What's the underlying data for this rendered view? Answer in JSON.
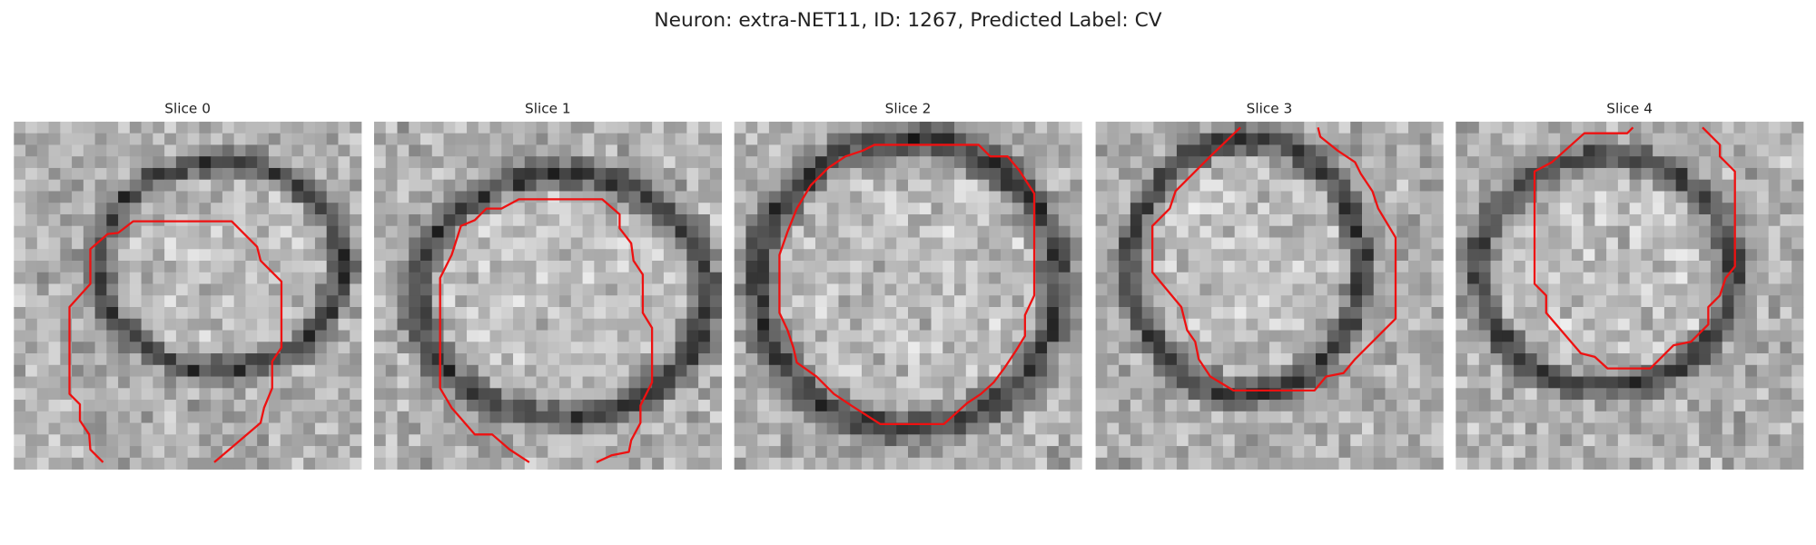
{
  "title": "Neuron: extra-NET11, ID: 1267, Predicted Label: CV",
  "panels": [
    {
      "title": "Slice 0"
    },
    {
      "title": "Slice 1"
    },
    {
      "title": "Slice 2"
    },
    {
      "title": "Slice 3"
    },
    {
      "title": "Slice 4"
    }
  ]
}
